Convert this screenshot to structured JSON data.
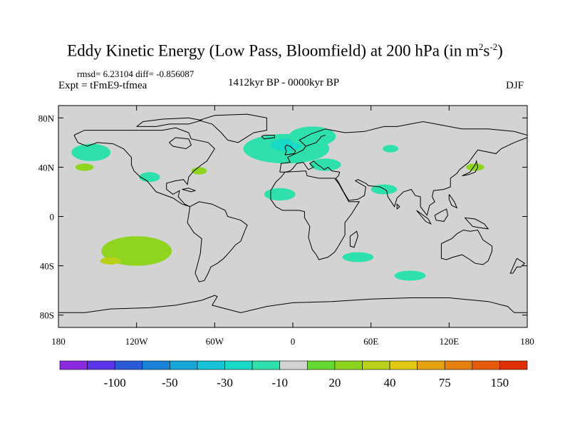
{
  "title": {
    "main": "Eddy Kinetic Energy (Low Pass, Bloomfield) at 200 hPa (in m",
    "sup1": "2",
    "mid": "s",
    "sup2": "-2",
    "close": ")"
  },
  "stats": "rmsd= 6.23104 diff= -0.856087",
  "expt": "Expt = tFmE9-tfmea",
  "period": "1412kyr BP - 0000kyr BP",
  "season": "DJF",
  "chart_data": {
    "type": "heatmap",
    "title": "Eddy Kinetic Energy (Low Pass, Bloomfield) at 200 hPa (in m2s-2)",
    "projection": "cylindrical-equidistant",
    "xlim": [
      -180,
      180
    ],
    "ylim": [
      -90,
      90
    ],
    "x_ticks": [
      {
        "value": -180,
        "label": "180"
      },
      {
        "value": -120,
        "label": "120W"
      },
      {
        "value": -60,
        "label": "60W"
      },
      {
        "value": 0,
        "label": "0"
      },
      {
        "value": 60,
        "label": "60E"
      },
      {
        "value": 120,
        "label": "120E"
      },
      {
        "value": 180,
        "label": "180"
      }
    ],
    "y_ticks": [
      {
        "value": 80,
        "label": "80N"
      },
      {
        "value": 40,
        "label": "40N"
      },
      {
        "value": 0,
        "label": "0"
      },
      {
        "value": -40,
        "label": "40S"
      },
      {
        "value": -80,
        "label": "80S"
      }
    ],
    "background_color": "#d3d3d3",
    "colorbar": {
      "colors": [
        "#8a2be2",
        "#5a35e8",
        "#2a5ad8",
        "#1a82d8",
        "#17a6d9",
        "#17c3d6",
        "#18d9c6",
        "#2ee0ac",
        "#d3d3d3",
        "#66d832",
        "#8fd41f",
        "#b8d018",
        "#e0c80f",
        "#e6a310",
        "#e6800f",
        "#e65a0c",
        "#e0300a"
      ],
      "boundaries": [
        -200,
        -150,
        -100,
        -75,
        -50,
        -40,
        -30,
        -20,
        -10,
        10,
        20,
        30,
        40,
        50,
        75,
        100,
        150,
        200
      ],
      "labels": [
        {
          "after_box": 1,
          "text": "-100"
        },
        {
          "after_box": 3,
          "text": "-50"
        },
        {
          "after_box": 5,
          "text": "-30"
        },
        {
          "after_box": 7,
          "text": "-10"
        },
        {
          "after_box": 9,
          "text": "20"
        },
        {
          "after_box": 11,
          "text": "40"
        },
        {
          "after_box": 13,
          "text": "75"
        },
        {
          "after_box": 15,
          "text": "150"
        }
      ]
    },
    "regions": [
      {
        "name": "north-atlantic-europe",
        "level": -15,
        "center": [
          -5,
          55
        ],
        "extent": [
          33,
          12
        ]
      },
      {
        "name": "north-atlantic-core",
        "level": -25,
        "center": [
          -5,
          58
        ],
        "extent": [
          12,
          5
        ]
      },
      {
        "name": "europe-continental",
        "level": -15,
        "center": [
          15,
          65
        ],
        "extent": [
          18,
          8
        ]
      },
      {
        "name": "mediterranean",
        "level": -15,
        "center": [
          25,
          42
        ],
        "extent": [
          12,
          5
        ]
      },
      {
        "name": "north-pacific",
        "level": -15,
        "center": [
          -155,
          52
        ],
        "extent": [
          15,
          7
        ]
      },
      {
        "name": "central-america",
        "level": -15,
        "center": [
          -110,
          32
        ],
        "extent": [
          8,
          4
        ]
      },
      {
        "name": "subtropical-atlantic",
        "level": -15,
        "center": [
          -10,
          18
        ],
        "extent": [
          12,
          5
        ]
      },
      {
        "name": "central-asia",
        "level": -15,
        "center": [
          70,
          22
        ],
        "extent": [
          10,
          4
        ]
      },
      {
        "name": "north-asia",
        "level": -15,
        "center": [
          75,
          55
        ],
        "extent": [
          6,
          3
        ]
      },
      {
        "name": "japan-region",
        "level": 20,
        "center": [
          140,
          40
        ],
        "extent": [
          7,
          3
        ]
      },
      {
        "name": "east-pacific-subtropic",
        "level": 20,
        "center": [
          -160,
          40
        ],
        "extent": [
          7,
          3
        ]
      },
      {
        "name": "gulf-mexico",
        "level": 20,
        "center": [
          -72,
          37
        ],
        "extent": [
          6,
          3
        ]
      },
      {
        "name": "south-pacific",
        "level": 25,
        "center": [
          -120,
          -28
        ],
        "extent": [
          27,
          12
        ]
      },
      {
        "name": "south-pacific-core",
        "level": 35,
        "center": [
          -140,
          -36
        ],
        "extent": [
          8,
          3
        ]
      },
      {
        "name": "southern-indian",
        "level": -15,
        "center": [
          90,
          -48
        ],
        "extent": [
          12,
          4
        ]
      },
      {
        "name": "south-atlantic",
        "level": -15,
        "center": [
          50,
          -33
        ],
        "extent": [
          12,
          4
        ]
      }
    ]
  }
}
